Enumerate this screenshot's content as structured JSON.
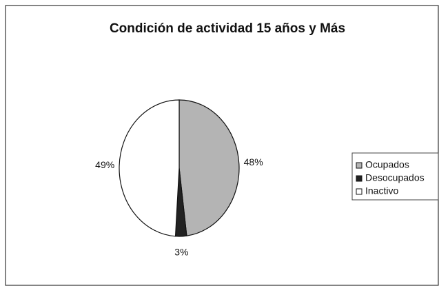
{
  "chart_data": {
    "type": "pie",
    "title": "Condición de actividad 15 años y Más",
    "categories": [
      "Ocupados",
      "Desocupados",
      "Inactivo"
    ],
    "values": [
      48,
      3,
      49
    ],
    "value_labels": [
      "48%",
      "3%",
      "49%"
    ],
    "colors": [
      "#b4b4b4",
      "#222222",
      "#ffffff"
    ],
    "legend": "right"
  }
}
